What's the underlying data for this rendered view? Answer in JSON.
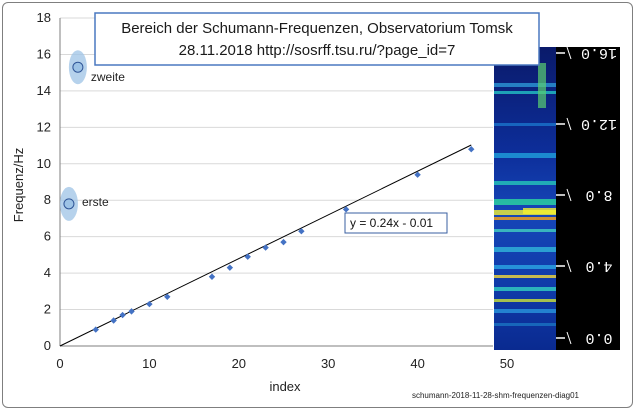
{
  "chart_data": {
    "type": "scatter",
    "title_line1": "Bereich der Schumann-Frequenzen, Observatorium Tomsk",
    "title_line2": "28.11.2018   http://sosrff.tsu.ru/?page_id=7",
    "xlabel": "index",
    "ylabel": "Frequenz/Hz",
    "xlim": [
      0,
      50
    ],
    "ylim": [
      0,
      18
    ],
    "x_ticks": [
      "0",
      "10",
      "20",
      "30",
      "40",
      "50"
    ],
    "y_ticks": [
      "0",
      "2",
      "4",
      "6",
      "8",
      "10",
      "12",
      "14",
      "16",
      "18"
    ],
    "grid": "horizontal",
    "series": [
      {
        "points": [
          [
            4,
            0.9
          ],
          [
            6,
            1.4
          ],
          [
            7,
            1.7
          ],
          [
            8,
            1.9
          ],
          [
            10,
            2.3
          ],
          [
            12,
            2.7
          ],
          [
            17,
            3.8
          ],
          [
            19,
            4.3
          ],
          [
            21,
            4.9
          ],
          [
            23,
            5.4
          ],
          [
            25,
            5.7
          ],
          [
            27,
            6.3
          ],
          [
            32,
            7.5
          ],
          [
            40,
            9.4
          ],
          [
            46,
            10.8
          ]
        ]
      }
    ],
    "trendline": {
      "label": "y = 0.24x - 0.01",
      "slope": 0.24,
      "intercept": -0.01,
      "x_range": [
        0,
        46
      ]
    },
    "annotations": [
      {
        "label": "zweite",
        "x": 2,
        "y": 15.3
      },
      {
        "label": "erste",
        "x": 1,
        "y": 7.8
      }
    ],
    "spectrogram_labels": [
      "16.0",
      "12.0",
      "8.0",
      "4.0",
      "0.0"
    ],
    "footer": "schumann-2018-11-28-shm-frequenzen-diag01",
    "colors": {
      "marker": "#4472c4",
      "line": "#000000",
      "grid": "#d9d9d9",
      "ellipse": "#9dc3e6"
    }
  }
}
